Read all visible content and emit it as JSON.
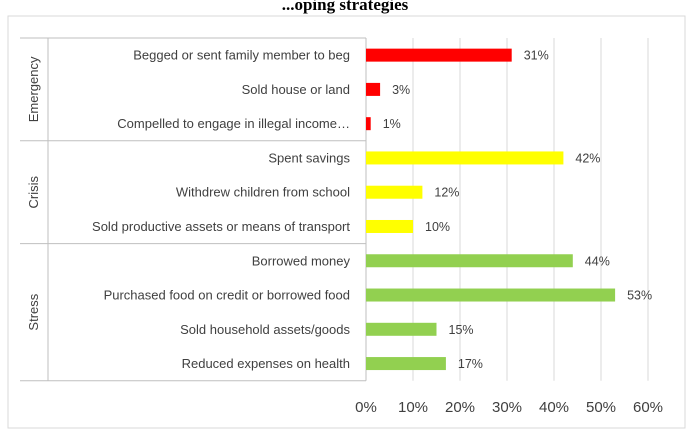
{
  "chart_data": {
    "type": "bar",
    "orientation": "horizontal",
    "title": "...oping strategies",
    "xlabel": "",
    "ylabel": "",
    "xlim": [
      0,
      60
    ],
    "x_ticks": [
      "0%",
      "10%",
      "20%",
      "30%",
      "40%",
      "50%",
      "60%"
    ],
    "grid": true,
    "legend": "none",
    "groups": [
      {
        "name": "Emergency",
        "color": "#ff0000",
        "items": [
          {
            "label": "Begged or sent family member to beg",
            "value": 31,
            "value_label": "31%"
          },
          {
            "label": "Sold house or land",
            "value": 3,
            "value_label": "3%"
          },
          {
            "label": "Compelled to engage in illegal income…",
            "value": 1,
            "value_label": "1%"
          }
        ]
      },
      {
        "name": "Crisis",
        "color": "#ffff00",
        "items": [
          {
            "label": "Spent savings",
            "value": 42,
            "value_label": "42%"
          },
          {
            "label": "Withdrew children from school",
            "value": 12,
            "value_label": "12%"
          },
          {
            "label": "Sold productive assets or means of transport",
            "value": 10,
            "value_label": "10%"
          }
        ]
      },
      {
        "name": "Stress",
        "color": "#92d050",
        "items": [
          {
            "label": "Borrowed money",
            "value": 44,
            "value_label": "44%"
          },
          {
            "label": "Purchased food on credit or borrowed food",
            "value": 53,
            "value_label": "53%"
          },
          {
            "label": "Sold household assets/goods",
            "value": 15,
            "value_label": "15%"
          },
          {
            "label": "Reduced expenses on health",
            "value": 17,
            "value_label": "17%"
          }
        ]
      }
    ]
  }
}
